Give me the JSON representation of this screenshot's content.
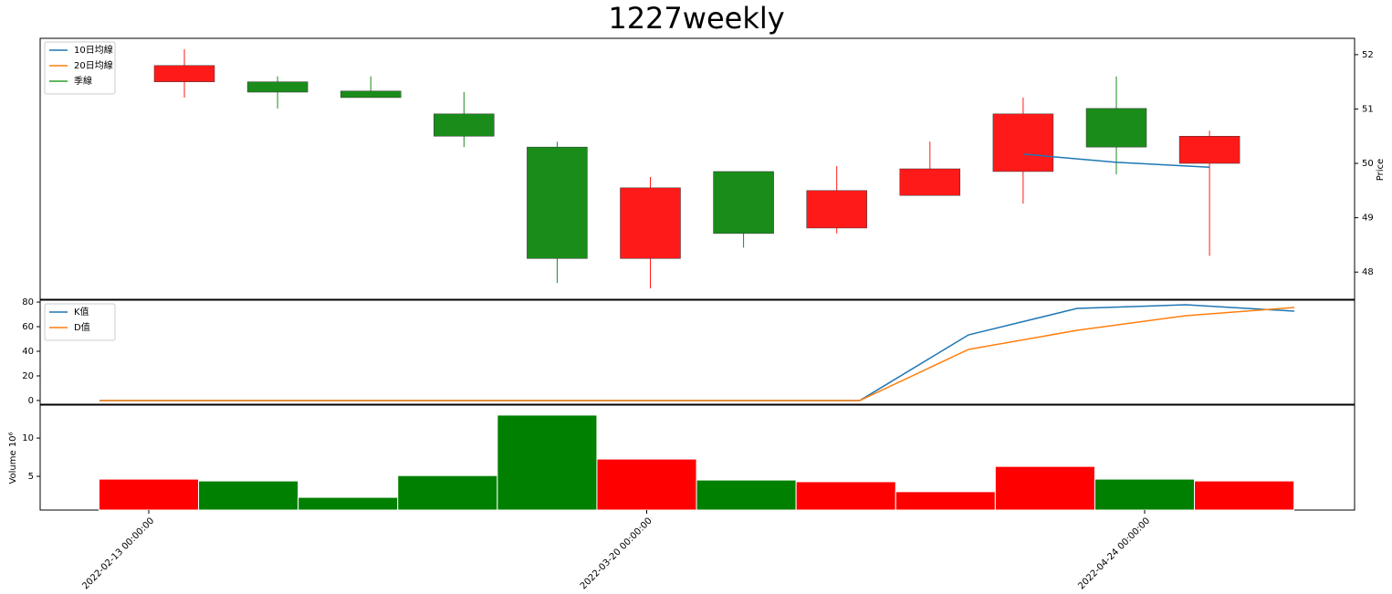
{
  "chart_data": [
    {
      "type": "candlestick",
      "title": "1227weekly",
      "ylabel": "Price",
      "open": [
        51.5,
        51.5,
        51.33,
        50.91,
        50.3,
        48.25,
        49.85,
        48.81,
        49.41,
        49.85,
        51.01,
        50.0
      ],
      "high": [
        52.1,
        51.6,
        51.6,
        51.31,
        50.4,
        49.75,
        49.85,
        49.95,
        50.4,
        51.21,
        51.6,
        50.6
      ],
      "low": [
        51.21,
        51.01,
        51.21,
        50.3,
        47.8,
        47.7,
        48.45,
        48.71,
        49.41,
        49.26,
        49.8,
        48.3
      ],
      "close": [
        51.8,
        51.31,
        51.21,
        50.5,
        48.25,
        49.55,
        48.71,
        49.5,
        49.9,
        50.91,
        50.3,
        50.5
      ],
      "up_color": "#ff1a1a",
      "down_color": "#1a8c1a",
      "series": [
        {
          "name": "10日均線",
          "color": "#1f77b4",
          "values": [
            null,
            null,
            null,
            null,
            null,
            null,
            null,
            null,
            null,
            50.17,
            50.02,
            49.93
          ]
        },
        {
          "name": "20日均線",
          "color": "#ff7f0e",
          "values": [
            null,
            null,
            null,
            null,
            null,
            null,
            null,
            null,
            null,
            null,
            null,
            null
          ]
        },
        {
          "name": "季線",
          "color": "#2ca02c",
          "values": [
            null,
            null,
            null,
            null,
            null,
            null,
            null,
            null,
            null,
            null,
            null,
            null
          ]
        }
      ],
      "ylim": [
        47.5,
        52.3
      ],
      "yticks": [
        48,
        49,
        50,
        51,
        52
      ],
      "legend": "upper left"
    },
    {
      "type": "line",
      "series": [
        {
          "name": "K值",
          "color": "#1f77b4",
          "values": [
            0,
            0,
            0,
            0,
            0,
            0,
            0,
            0,
            53.3,
            74.8,
            77.8,
            72.6
          ]
        },
        {
          "name": "D值",
          "color": "#ff7f0e",
          "values": [
            0,
            0,
            0,
            0,
            0,
            0,
            0,
            0,
            41.5,
            57.0,
            68.9,
            75.6
          ]
        }
      ],
      "ylim": [
        -3,
        81.5
      ],
      "yticks": [
        0,
        20,
        40,
        60,
        80
      ],
      "legend": "upper left"
    },
    {
      "type": "bar",
      "ylabel": "Volume  10⁶",
      "categories": [
        "2022-02-13 00:00:00",
        null,
        null,
        null,
        null,
        "2022-03-20 00:00:00",
        null,
        null,
        null,
        null,
        "2022-04-24 00:00:00",
        null
      ],
      "values": [
        4.64,
        4.4,
        2.26,
        5.1,
        13.0,
        7.26,
        4.52,
        4.3,
        3.0,
        6.3,
        4.64,
        4.4
      ],
      "colors": [
        "#ff0000",
        "#008000",
        "#008000",
        "#008000",
        "#008000",
        "#ff0000",
        "#008000",
        "#ff0000",
        "#ff0000",
        "#ff0000",
        "#008000",
        "#ff0000"
      ],
      "ylim": [
        0.6,
        14.3
      ],
      "yticks": [
        5,
        10
      ]
    }
  ]
}
